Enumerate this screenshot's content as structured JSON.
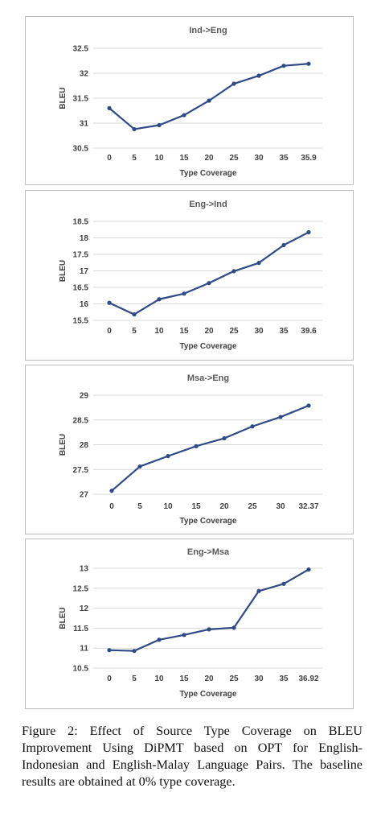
{
  "chart_data": [
    {
      "type": "line",
      "title": "Ind->Eng",
      "xlabel": "Type Coverage",
      "ylabel": "BLEU",
      "categories": [
        "0",
        "5",
        "10",
        "15",
        "20",
        "25",
        "30",
        "35",
        "35.9"
      ],
      "values": [
        31.3,
        30.88,
        30.96,
        31.16,
        31.45,
        31.79,
        31.95,
        32.15,
        32.19
      ],
      "ylim": [
        30.5,
        32.5
      ],
      "yticks": [
        "30.5",
        "31",
        "31.5",
        "32",
        "32.5"
      ],
      "grid": true,
      "color": "#2f4a86"
    },
    {
      "type": "line",
      "title": "Eng->Ind",
      "xlabel": "Type Coverage",
      "ylabel": "BLEU",
      "categories": [
        "0",
        "5",
        "10",
        "15",
        "20",
        "25",
        "30",
        "35",
        "39.6"
      ],
      "values": [
        16.03,
        15.68,
        16.14,
        16.31,
        16.63,
        16.99,
        17.24,
        17.78,
        18.17
      ],
      "ylim": [
        15.5,
        18.5
      ],
      "yticks": [
        "15.5",
        "16",
        "16.5",
        "17",
        "17.5",
        "18",
        "18.5"
      ],
      "grid": true,
      "color": "#2f4a86"
    },
    {
      "type": "line",
      "title": "Msa->Eng",
      "xlabel": "Type Coverage",
      "ylabel": "BLEU",
      "categories": [
        "0",
        "5",
        "10",
        "15",
        "20",
        "25",
        "30",
        "32.37"
      ],
      "values": [
        27.07,
        27.56,
        27.77,
        27.97,
        28.13,
        28.37,
        28.56,
        28.79
      ],
      "ylim": [
        27,
        29
      ],
      "yticks": [
        "27",
        "27.5",
        "28",
        "28.5",
        "29"
      ],
      "grid": true,
      "color": "#2f4a86"
    },
    {
      "type": "line",
      "title": "Eng->Msa",
      "xlabel": "Type Coverage",
      "ylabel": "BLEU",
      "categories": [
        "0",
        "5",
        "10",
        "15",
        "20",
        "25",
        "30",
        "35",
        "36.92"
      ],
      "values": [
        10.95,
        10.93,
        11.21,
        11.33,
        11.47,
        11.51,
        12.43,
        12.61,
        12.97
      ],
      "ylim": [
        10.5,
        13
      ],
      "yticks": [
        "10.5",
        "11",
        "11.5",
        "12",
        "12.5",
        "13"
      ],
      "grid": true,
      "color": "#2f4a86"
    }
  ],
  "caption": {
    "text": "Figure 2: Effect of Source Type Coverage on BLEU Improvement Using DiPMT based on OPT for English-Indonesian and English-Malay Language Pairs.  The baseline results are obtained at 0% type coverage."
  }
}
